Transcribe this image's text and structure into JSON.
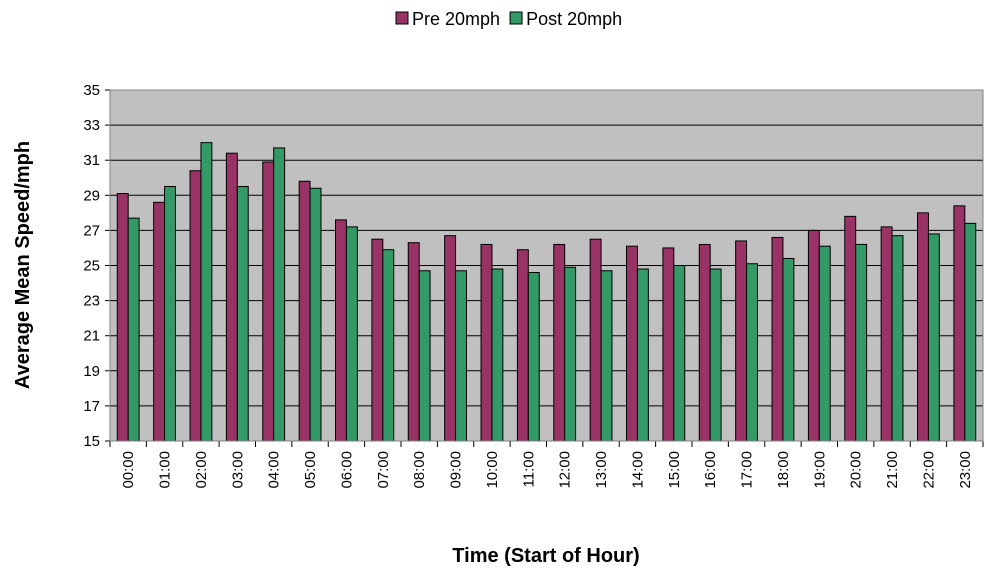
{
  "chart_data": {
    "type": "bar",
    "xlabel": "Time (Start of Hour)",
    "ylabel": "Average Mean Speed/mph",
    "categories": [
      "00:00",
      "01:00",
      "02:00",
      "03:00",
      "04:00",
      "05:00",
      "06:00",
      "07:00",
      "08:00",
      "09:00",
      "10:00",
      "11:00",
      "12:00",
      "13:00",
      "14:00",
      "15:00",
      "16:00",
      "17:00",
      "18:00",
      "19:00",
      "20:00",
      "21:00",
      "22:00",
      "23:00"
    ],
    "series": [
      {
        "name": "Pre 20mph",
        "color": "#993366",
        "values": [
          29.1,
          28.6,
          30.4,
          31.4,
          30.9,
          29.8,
          27.6,
          26.5,
          26.3,
          26.7,
          26.2,
          25.9,
          26.2,
          26.5,
          26.1,
          26.0,
          26.2,
          26.4,
          26.6,
          27.0,
          27.8,
          27.2,
          28.0,
          28.4
        ]
      },
      {
        "name": "Post 20mph",
        "color": "#339966",
        "values": [
          27.7,
          29.5,
          32.0,
          29.5,
          31.7,
          29.4,
          27.2,
          25.9,
          24.7,
          24.7,
          24.8,
          24.6,
          24.9,
          24.7,
          24.8,
          25.0,
          24.8,
          25.1,
          25.4,
          26.1,
          26.2,
          26.7,
          26.8,
          27.4
        ]
      }
    ],
    "ylim": [
      15,
      35
    ],
    "yticks": [
      15,
      17,
      19,
      21,
      23,
      25,
      27,
      29,
      31,
      33,
      35
    ],
    "grid": true,
    "legend": "top"
  }
}
